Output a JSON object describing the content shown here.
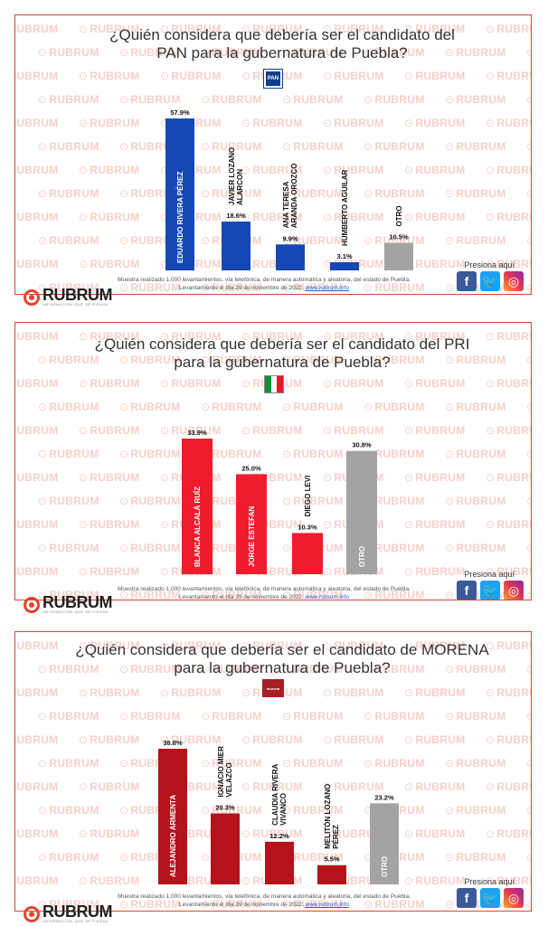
{
  "brand": {
    "name": "RUBRUM",
    "tagline": "INFORMACIÓN QUE SE PIENSA",
    "watermark": "RUBRUM"
  },
  "social": {
    "prompt": "Presiona aquí",
    "icons": [
      "facebook-icon",
      "twitter-icon",
      "instagram-icon"
    ]
  },
  "panels": [
    {
      "id": "pan",
      "question_line1": "¿Quién considera que debería ser el candidato del",
      "question_line2": "PAN para la gubernatura de Puebla?",
      "party_logo_text": "PAN",
      "note_line1": "Muestra realizado 1,000 levantamientos, vía telefónica, de manera automática y aleatoria, del estado de Puebla.",
      "note_line2": "Levantamiento el día 29 de noviembre de 2022.",
      "note_link": "www.rubrum.info",
      "chart_data": {
        "type": "bar",
        "title": "¿Quién considera que debería ser el candidato del PAN para la gubernatura de Puebla?",
        "unit": "%",
        "ylim": [
          0,
          60
        ],
        "grid": false,
        "categories": [
          "EDUARDO RIVERA PÉREZ",
          "JAVIER LOZANO ALARCON",
          "ANA TERESA ARANDA OROZCO",
          "HUMBERTO AGUILAR",
          "OTRO"
        ],
        "values": [
          57.9,
          18.6,
          9.9,
          3.1,
          10.5
        ],
        "value_labels": [
          "57.9%",
          "18.6%",
          "9.9%",
          "3.1%",
          "10.5%"
        ],
        "colors": [
          "#1747b5",
          "#1747b5",
          "#1747b5",
          "#1747b5",
          "#a3a3a3"
        ]
      }
    },
    {
      "id": "pri",
      "question_line1": "¿Quién considera que debería ser el candidato del PRI",
      "question_line2": "para la gubernatura de Puebla?",
      "party_logo_text": "PRI",
      "note_line1": "Muestra realizado 1,000 levantamientos, vía telefónica, de manera automática y aleatoria, del estado de Puebla.",
      "note_line2": "Levantamiento el día 29 de noviembre de 2022.",
      "note_link": "www.rubrum.info",
      "chart_data": {
        "type": "bar",
        "title": "¿Quién considera que debería ser el candidato del PRI para la gubernatura de Puebla?",
        "unit": "%",
        "ylim": [
          0,
          40
        ],
        "grid": false,
        "categories": [
          "BLANCA ALCALÁ RUÍZ",
          "JORGE ESTEFAN",
          "DIEGO LEVI",
          "OTRO"
        ],
        "values": [
          33.9,
          25.0,
          10.3,
          30.8
        ],
        "value_labels": [
          "33.9%",
          "25.0%",
          "10.3%",
          "30.8%"
        ],
        "colors": [
          "#ee1c2e",
          "#ee1c2e",
          "#ee1c2e",
          "#a3a3a3"
        ]
      }
    },
    {
      "id": "morena",
      "question_line1": "¿Quién considera que debería ser el candidato de MORENA",
      "question_line2": "para la gubernatura de Puebla?",
      "party_logo_text": "morena",
      "note_line1": "Muestra realizado 1,000 levantamientos, vía telefónica, de manera automática y aleatoria, del estado de Puebla.",
      "note_line2": "Levantamiento el día 29 de noviembre de 2022.",
      "note_link": "www.rubrum.info",
      "chart_data": {
        "type": "bar",
        "title": "¿Quién considera que debería ser el candidato de MORENA para la gubernatura de Puebla?",
        "unit": "%",
        "ylim": [
          0,
          45
        ],
        "grid": false,
        "categories": [
          "ALEJANDRO ARMENTA",
          "IGNACIO MIER VELAZCO",
          "CLAUDIA RIVERA VIVANCO",
          "MELITÓN LOZANO PÉREZ",
          "OTRO"
        ],
        "values": [
          38.8,
          20.3,
          12.2,
          5.5,
          23.2
        ],
        "value_labels": [
          "38.8%",
          "20.3%",
          "12.2%",
          "5.5%",
          "23.2%"
        ],
        "colors": [
          "#b5121b",
          "#b5121b",
          "#b5121b",
          "#b5121b",
          "#a3a3a3"
        ]
      }
    }
  ]
}
